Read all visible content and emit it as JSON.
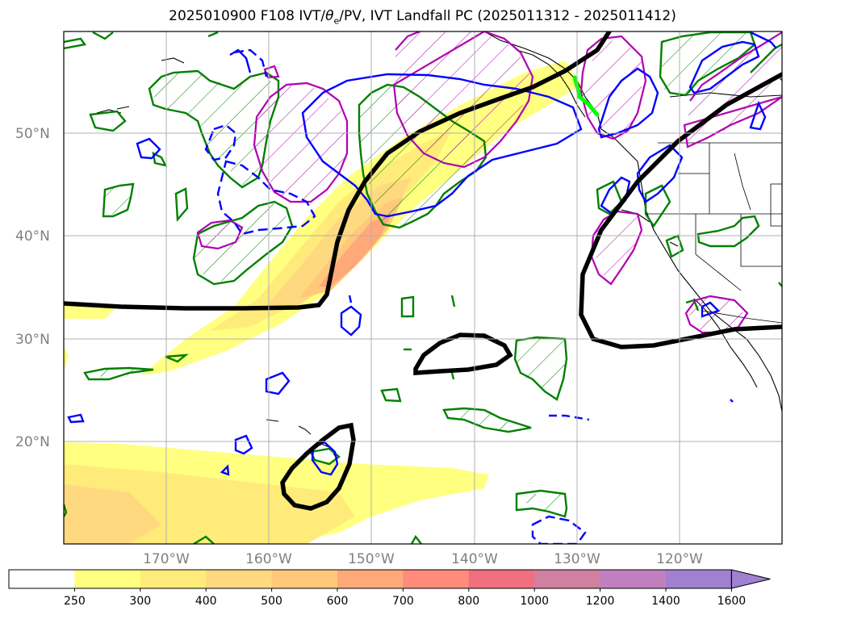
{
  "title": {
    "prefix": "2025010900 F108 IVT/",
    "theta_symbol": "θ",
    "theta_sub": "e",
    "suffix": "/PV, IVT Landfall PC (2025011312 - 2025011412)"
  },
  "map": {
    "lon_range": [
      -180,
      -110
    ],
    "lat_range": [
      10,
      60
    ],
    "lon_ticks": [
      "170°W",
      "160°W",
      "150°W",
      "140°W",
      "130°W",
      "120°W"
    ],
    "lat_ticks": [
      "20°N",
      "30°N",
      "40°N",
      "50°N"
    ],
    "grid": true
  },
  "colorbar": {
    "labels": [
      "250",
      "300",
      "400",
      "500",
      "600",
      "700",
      "800",
      "1000",
      "1200",
      "1400",
      "1600"
    ],
    "colors": [
      "#ffffff",
      "#ffff80",
      "#ffeb7a",
      "#ffd980",
      "#ffc87a",
      "#ffa87a",
      "#ff8c7a",
      "#f07080",
      "#d080a0",
      "#c080c0",
      "#a080d0"
    ],
    "extend": "max"
  },
  "legend_colors": {
    "pv_contour": "#0000ff",
    "theta_contour": "#008000",
    "ivt_contour": "#b000b0",
    "pc_line": "#000000",
    "landfall": "#00ff00"
  }
}
